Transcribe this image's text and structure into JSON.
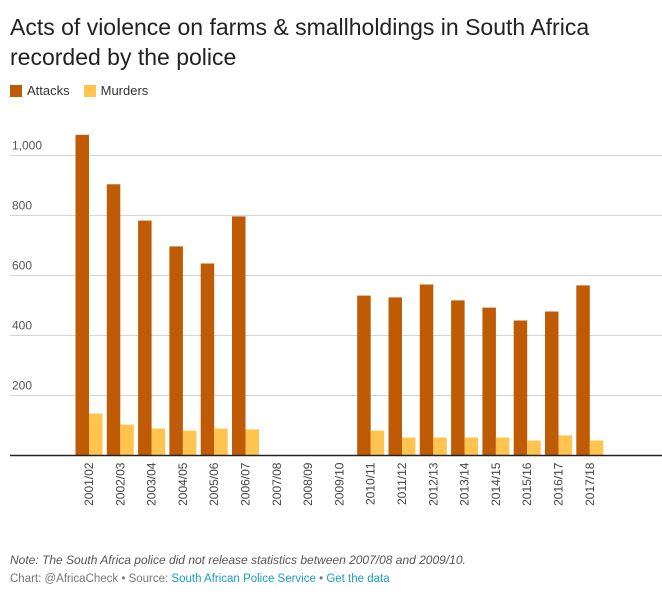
{
  "chart_data": {
    "type": "bar",
    "title": "Acts of violence on farms & smallholdings in South Africa recorded by the police",
    "categories": [
      "2001/02",
      "2002/03",
      "2003/04",
      "2004/05",
      "2005/06",
      "2006/07",
      "2007/08",
      "2008/09",
      "2009/10",
      "2010/11",
      "2011/12",
      "2012/13",
      "2013/14",
      "2014/15",
      "2015/16",
      "2016/17",
      "2017/18"
    ],
    "series": [
      {
        "name": "Attacks",
        "color": "#bf5b04",
        "values": [
          1069,
          904,
          783,
          697,
          640,
          797,
          null,
          null,
          null,
          533,
          527,
          570,
          517,
          493,
          450,
          480,
          567
        ]
      },
      {
        "name": "Murders",
        "color": "#fec44f",
        "values": [
          140,
          103,
          90,
          83,
          90,
          87,
          null,
          null,
          null,
          83,
          60,
          60,
          60,
          60,
          50,
          67,
          50
        ]
      }
    ],
    "yticks": [
      {
        "value": 200,
        "label": "200"
      },
      {
        "value": 400,
        "label": "400"
      },
      {
        "value": 600,
        "label": "600"
      },
      {
        "value": 800,
        "label": "800"
      },
      {
        "value": 1000,
        "label": "1,000"
      }
    ],
    "ylim": [
      0,
      1000
    ],
    "grid": true,
    "legend": "top-left"
  },
  "note": "Note: The South Africa police did not release statistics between 2007/08 and 2009/10.",
  "footer": {
    "prefix": "Chart: @AfricaCheck • Source: ",
    "source": "South African Police Service",
    "sep": " • ",
    "get_data": "Get the data"
  }
}
